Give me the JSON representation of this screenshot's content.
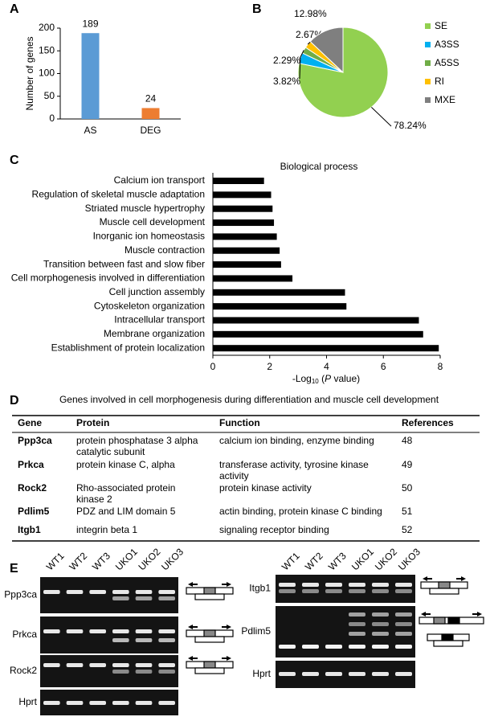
{
  "panel_labels": [
    "A",
    "B",
    "C",
    "D",
    "E"
  ],
  "chart_data": [
    {
      "type": "bar",
      "ylabel": "Number of genes",
      "categories": [
        "AS",
        "DEG"
      ],
      "values": [
        189,
        24
      ],
      "colors": [
        "#5b9bd5",
        "#ed7d31"
      ],
      "ylim": [
        0,
        200
      ],
      "yticks": [
        0,
        50,
        100,
        150,
        200
      ]
    },
    {
      "type": "pie",
      "categories": [
        "SE",
        "A3SS",
        "A5SS",
        "RI",
        "MXE"
      ],
      "values": [
        78.24,
        3.82,
        2.29,
        2.67,
        12.98
      ],
      "value_labels": [
        "78.24%",
        "3.82%",
        "2.29%",
        "2.67%",
        "12.98%"
      ],
      "colors": [
        "#92d050",
        "#00b0f0",
        "#70ad47",
        "#ffc000",
        "#7f7f7f"
      ]
    },
    {
      "type": "hbar",
      "title": "Biological process",
      "categories": [
        "Calcium ion transport",
        "Regulation of skeletal muscle adaptation",
        "Striated muscle hypertrophy",
        "Muscle cell development",
        "Inorganic ion homeostasis",
        "Muscle contraction",
        "Transition between fast and slow fiber",
        "Cell morphogenesis involved in differentiation",
        "Cell junction assembly",
        "Cytoskeleton organization",
        "Intracellular transport",
        "Membrane organization",
        "Establishment of protein localization"
      ],
      "values": [
        1.8,
        2.05,
        2.1,
        2.15,
        2.25,
        2.35,
        2.4,
        2.8,
        4.65,
        4.7,
        7.25,
        7.4,
        7.95
      ],
      "color": "#000000",
      "xlabel": [
        "-Log",
        "10",
        " (",
        "P",
        " value)"
      ],
      "xlim": [
        0,
        8
      ],
      "xticks": [
        0,
        2,
        4,
        6,
        8
      ]
    }
  ],
  "table": {
    "title": "Genes  involved in cell morphogenesis during differentiation and muscle cell development",
    "header": [
      "Gene",
      "Protein",
      "Function",
      "References"
    ],
    "rows": [
      [
        "Ppp3ca",
        [
          "protein phosphatase 3 alpha",
          "catalytic subunit"
        ],
        "calcium ion binding, enzyme binding",
        "48"
      ],
      [
        "Prkca",
        "protein kinase C, alpha",
        [
          "transferase activity, tyrosine kinase",
          "activity"
        ],
        "49"
      ],
      [
        "Rock2",
        [
          "Rho-associated  protein",
          "kinase 2"
        ],
        "protein kinase activity",
        "50"
      ],
      [
        "Pdlim5",
        "PDZ and LIM domain 5",
        "actin binding, protein kinase C binding",
        "51"
      ],
      [
        "Itgb1",
        "integrin beta 1",
        "signaling receptor binding",
        "52"
      ]
    ]
  },
  "gels": {
    "lanes": [
      "WT1",
      "WT2",
      "WT3",
      "UKO1",
      "UKO2",
      "UKO3"
    ],
    "left_genes": [
      "Ppp3ca",
      "Prkca",
      "Rock2",
      "Hprt"
    ],
    "right_genes": [
      "Itgb1",
      "Pdlim5",
      "Hprt"
    ]
  }
}
